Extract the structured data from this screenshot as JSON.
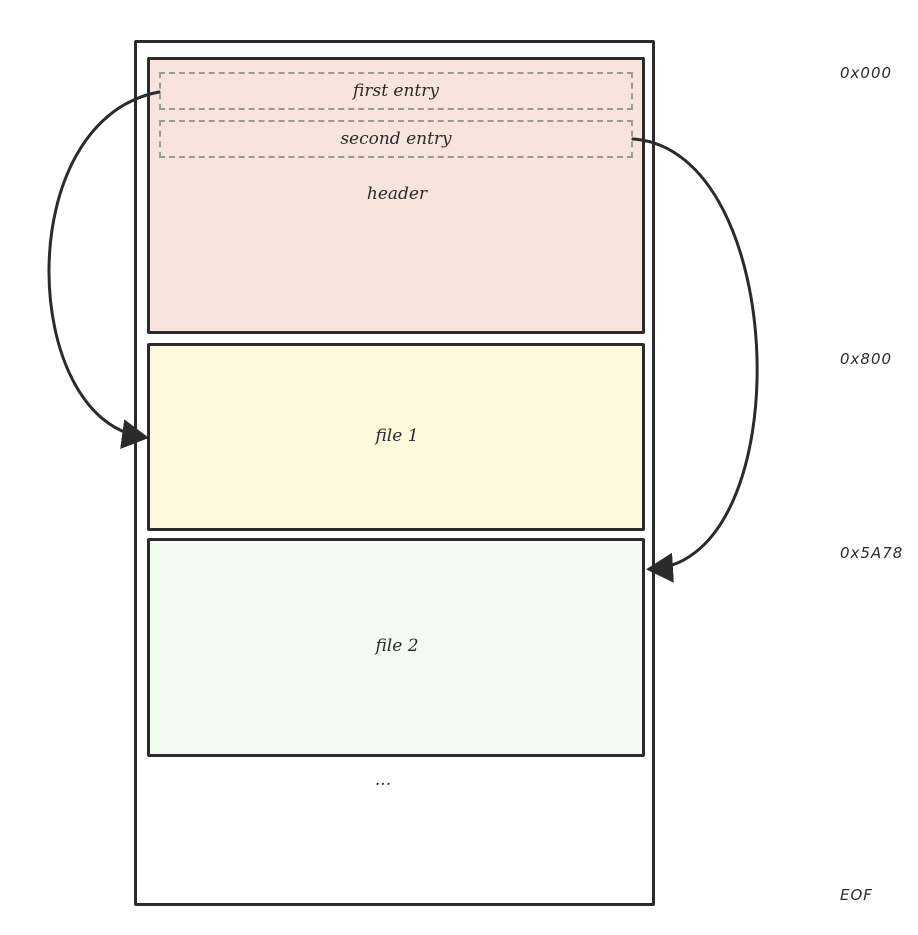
{
  "blocks": {
    "header": "header",
    "first_entry": "first entry",
    "second_entry": "second entry",
    "file1": "file 1",
    "file2": "file 2",
    "ellipsis": "..."
  },
  "offsets": {
    "o0": "0x000",
    "o1": "0x800",
    "o2": "0x5A78",
    "o3": "EOF"
  },
  "colors": {
    "header_fill": "#f7e5dd",
    "file1_fill": "#fdf7dc",
    "file2_fill": "#f1fbef",
    "stroke": "#2b2b2b",
    "entry_border": "#9a9a9a"
  }
}
